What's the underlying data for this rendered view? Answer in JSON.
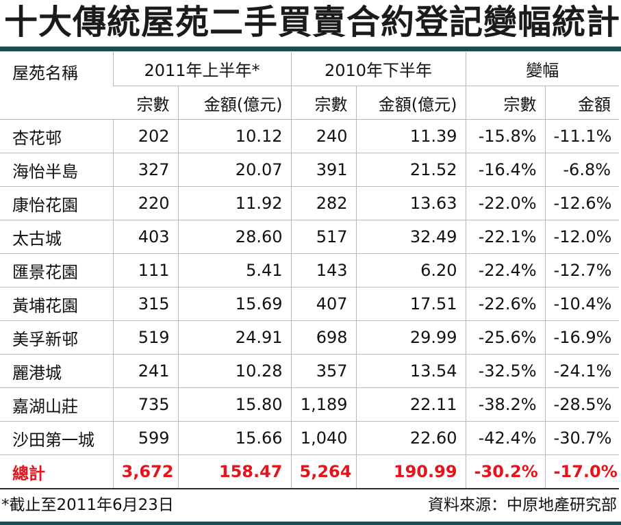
{
  "title": "十大傳統屋苑二手買賣合約登記變幅統計",
  "headers": {
    "estate": "屋苑名稱",
    "h2011": "2011年上半年*",
    "h2010": "2010年下半年",
    "change": "變幅",
    "count": "宗數",
    "amount": "金額(億元)",
    "count_change": "宗數",
    "amount_change": "金額"
  },
  "rows": [
    {
      "name": "杏花邨",
      "c2011": "202",
      "a2011": "10.12",
      "c2010": "240",
      "a2010": "11.39",
      "cc": "-15.8%",
      "ac": "-11.1%"
    },
    {
      "name": "海怡半島",
      "c2011": "327",
      "a2011": "20.07",
      "c2010": "391",
      "a2010": "21.52",
      "cc": "-16.4%",
      "ac": "-6.8%"
    },
    {
      "name": "康怡花園",
      "c2011": "220",
      "a2011": "11.92",
      "c2010": "282",
      "a2010": "13.63",
      "cc": "-22.0%",
      "ac": "-12.6%"
    },
    {
      "name": "太古城",
      "c2011": "403",
      "a2011": "28.60",
      "c2010": "517",
      "a2010": "32.49",
      "cc": "-22.1%",
      "ac": "-12.0%"
    },
    {
      "name": "匯景花園",
      "c2011": "111",
      "a2011": "5.41",
      "c2010": "143",
      "a2010": "6.20",
      "cc": "-22.4%",
      "ac": "-12.7%"
    },
    {
      "name": "黃埔花園",
      "c2011": "315",
      "a2011": "15.69",
      "c2010": "407",
      "a2010": "17.51",
      "cc": "-22.6%",
      "ac": "-10.4%"
    },
    {
      "name": "美孚新邨",
      "c2011": "519",
      "a2011": "24.91",
      "c2010": "698",
      "a2010": "29.99",
      "cc": "-25.6%",
      "ac": "-16.9%"
    },
    {
      "name": "麗港城",
      "c2011": "241",
      "a2011": "10.28",
      "c2010": "357",
      "a2010": "13.54",
      "cc": "-32.5%",
      "ac": "-24.1%"
    },
    {
      "name": "嘉湖山莊",
      "c2011": "735",
      "a2011": "15.80",
      "c2010": "1,189",
      "a2010": "22.11",
      "cc": "-38.2%",
      "ac": "-28.5%"
    },
    {
      "name": "沙田第一城",
      "c2011": "599",
      "a2011": "15.66",
      "c2010": "1,040",
      "a2010": "22.60",
      "cc": "-42.4%",
      "ac": "-30.7%"
    }
  ],
  "total": {
    "name": "總計",
    "c2011": "3,672",
    "a2011": "158.47",
    "c2010": "5,264",
    "a2010": "190.99",
    "cc": "-30.2%",
    "ac": "-17.0%"
  },
  "footnote": "*截止至2011年6月23日",
  "source": "資料來源：中原地產研究部",
  "colors": {
    "bar": "#1d4b52",
    "total": "#e3141c"
  }
}
